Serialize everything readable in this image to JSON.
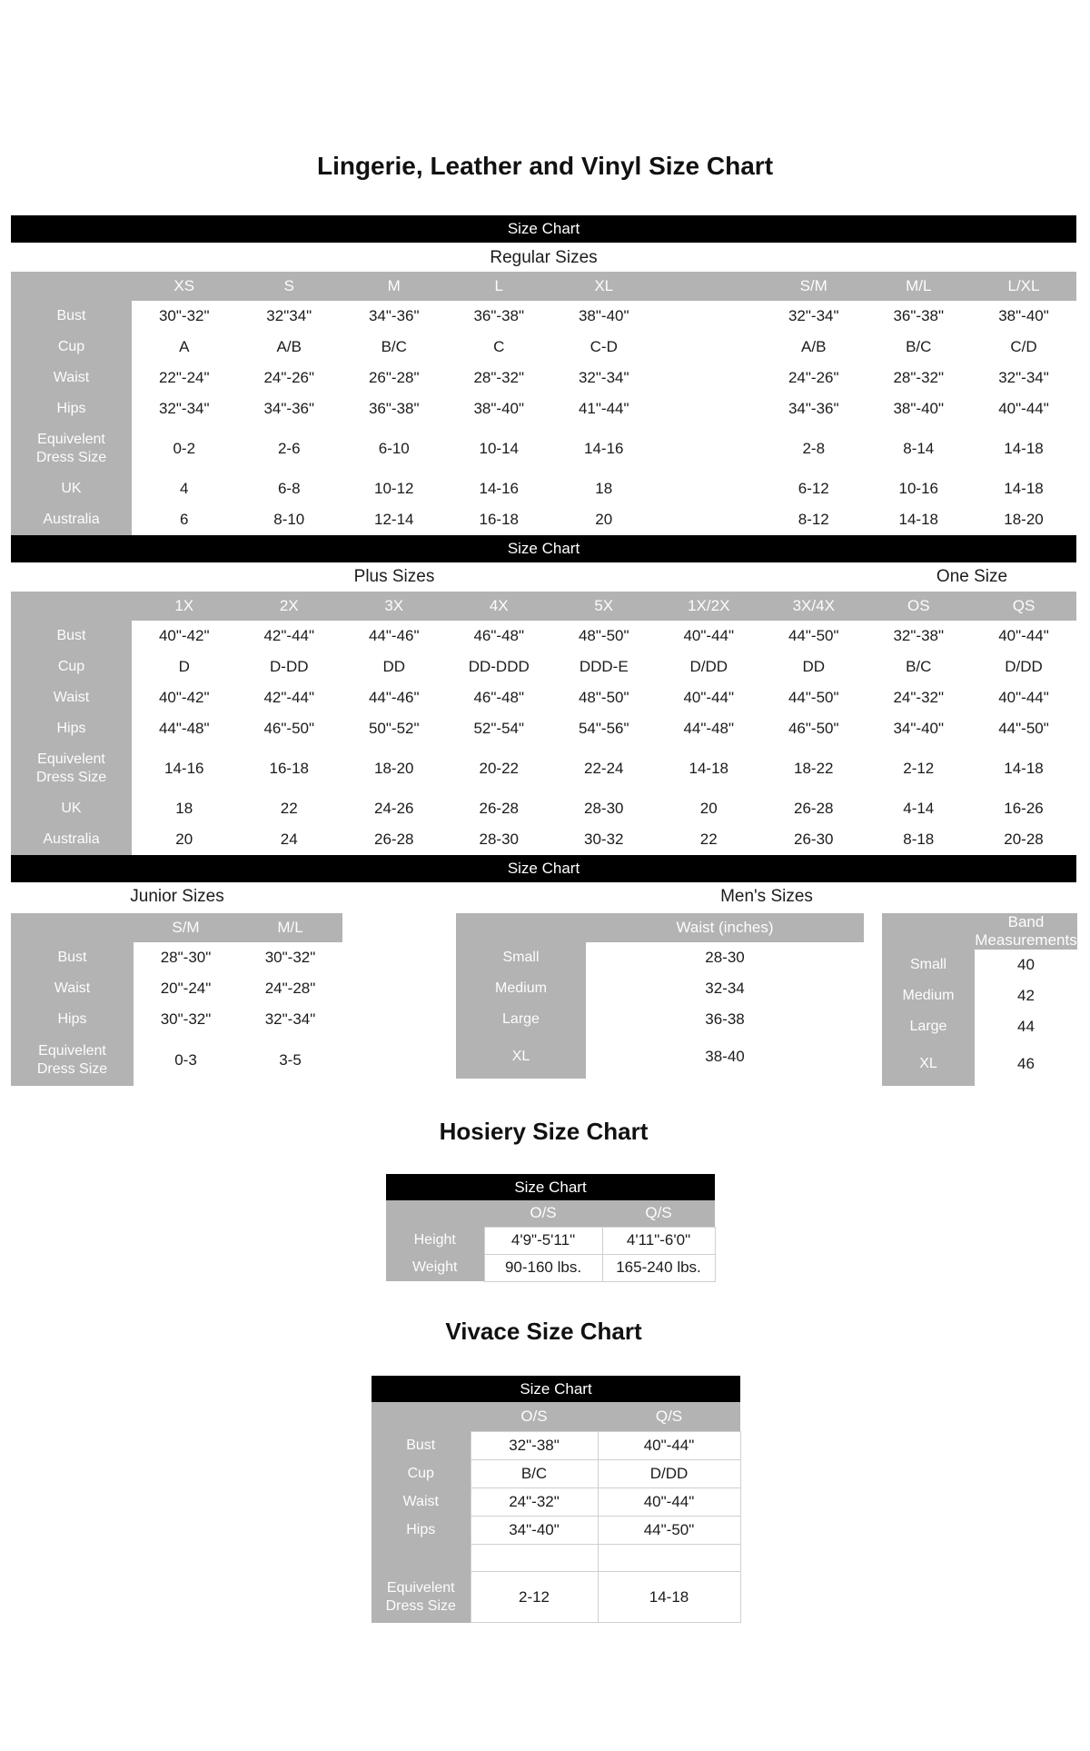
{
  "page": {
    "title": "Lingerie, Leather and Vinyl Size Chart",
    "bar_label": "Size Chart"
  },
  "colors": {
    "bar_bg": "#000000",
    "bar_text": "#ffffff",
    "header_gray": "#b3b3b3",
    "header_text": "#ffffff",
    "value_text": "#1b1b1b",
    "page_bg": "#ffffff",
    "divider": "#d0d0d0"
  },
  "regular": {
    "section_label": "Regular Sizes",
    "table": [
      [
        "",
        "XS",
        "S",
        "M",
        "L",
        "XL",
        "",
        "S/M",
        "M/L",
        "L/XL"
      ],
      [
        "Bust",
        "30\"-32\"",
        "32\"34\"",
        "34\"-36\"",
        "36\"-38\"",
        "38\"-40\"",
        "",
        "32\"-34\"",
        "36\"-38\"",
        "38\"-40\""
      ],
      [
        "Cup",
        "A",
        "A/B",
        "B/C",
        "C",
        "C-D",
        "",
        "A/B",
        "B/C",
        "C/D"
      ],
      [
        "Waist",
        "22\"-24\"",
        "24\"-26\"",
        "26\"-28\"",
        "28\"-32\"",
        "32\"-34\"",
        "",
        "24\"-26\"",
        "28\"-32\"",
        "32\"-34\""
      ],
      [
        "Hips",
        "32\"-34\"",
        "34\"-36\"",
        "36\"-38\"",
        "38\"-40\"",
        "41\"-44\"",
        "",
        "34\"-36\"",
        "38\"-40\"",
        "40\"-44\""
      ],
      [
        "Equivelent\nDress Size",
        "0-2",
        "2-6",
        "6-10",
        "10-14",
        "14-16",
        "",
        "2-8",
        "8-14",
        "14-18"
      ],
      [
        "UK",
        "4",
        "6-8",
        "10-12",
        "14-16",
        "18",
        "",
        "6-12",
        "10-16",
        "14-18"
      ],
      [
        "Australia",
        "6",
        "8-10",
        "12-14",
        "16-18",
        "20",
        "",
        "8-12",
        "14-18",
        "18-20"
      ]
    ]
  },
  "plus": {
    "section_label": "Plus Sizes",
    "one_size_label": "One Size",
    "table": [
      [
        "",
        "1X",
        "2X",
        "3X",
        "4X",
        "5X",
        "1X/2X",
        "3X/4X",
        "OS",
        "QS"
      ],
      [
        "Bust",
        "40\"-42\"",
        "42\"-44\"",
        "44\"-46\"",
        "46\"-48\"",
        "48\"-50\"",
        "40\"-44\"",
        "44\"-50\"",
        "32\"-38\"",
        "40\"-44\""
      ],
      [
        "Cup",
        "D",
        "D-DD",
        "DD",
        "DD-DDD",
        "DDD-E",
        "D/DD",
        "DD",
        "B/C",
        "D/DD"
      ],
      [
        "Waist",
        "40\"-42\"",
        "42\"-44\"",
        "44\"-46\"",
        "46\"-48\"",
        "48\"-50\"",
        "40\"-44\"",
        "44\"-50\"",
        "24\"-32\"",
        "40\"-44\""
      ],
      [
        "Hips",
        "44\"-48\"",
        "46\"-50\"",
        "50\"-52\"",
        "52\"-54\"",
        "54\"-56\"",
        "44\"-48\"",
        "46\"-50\"",
        "34\"-40\"",
        "44\"-50\""
      ],
      [
        "Equivelent\nDress Size",
        "14-16",
        "16-18",
        "18-20",
        "20-22",
        "22-24",
        "14-18",
        "18-22",
        "2-12",
        "14-18"
      ],
      [
        "UK",
        "18",
        "22",
        "24-26",
        "26-28",
        "28-30",
        "20",
        "26-28",
        "4-14",
        "16-26"
      ],
      [
        "Australia",
        "20",
        "24",
        "26-28",
        "28-30",
        "30-32",
        "22",
        "26-30",
        "8-18",
        "20-28"
      ]
    ]
  },
  "junior": {
    "section_label": "Junior Sizes",
    "table": [
      [
        "",
        "S/M",
        "M/L"
      ],
      [
        "Bust",
        "28\"-30\"",
        "30\"-32\""
      ],
      [
        "Waist",
        "20\"-24\"",
        "24\"-28\""
      ],
      [
        "Hips",
        "30\"-32\"",
        "32\"-34\""
      ],
      [
        "Equivelent\nDress Size",
        "0-3",
        "3-5"
      ]
    ]
  },
  "mens": {
    "section_label": "Men's Sizes",
    "waist_table": [
      [
        "",
        "Waist (inches)"
      ],
      [
        "Small",
        "28-30"
      ],
      [
        "Medium",
        "32-34"
      ],
      [
        "Large",
        "36-38"
      ],
      [
        "XL",
        "38-40"
      ]
    ],
    "band_table": [
      [
        "",
        "Band Measurements"
      ],
      [
        "Small",
        "40"
      ],
      [
        "Medium",
        "42"
      ],
      [
        "Large",
        "44"
      ],
      [
        "XL",
        "46"
      ]
    ]
  },
  "hosiery": {
    "title": "Hosiery Size Chart",
    "table": [
      [
        "",
        "O/S",
        "Q/S"
      ],
      [
        "Height",
        "4'9\"-5'11\"",
        "4'11\"-6'0\""
      ],
      [
        "Weight",
        "90-160 lbs.",
        "165-240 lbs."
      ]
    ]
  },
  "vivace": {
    "title": "Vivace Size Chart",
    "table": [
      [
        "",
        "O/S",
        "Q/S"
      ],
      [
        "Bust",
        "32\"-38\"",
        "40\"-44\""
      ],
      [
        "Cup",
        "B/C",
        "D/DD"
      ],
      [
        "Waist",
        "24\"-32\"",
        "40\"-44\""
      ],
      [
        "Hips",
        "34\"-40\"",
        "44\"-50\""
      ],
      [
        "",
        "",
        ""
      ],
      [
        "Equivelent\nDress Size",
        "2-12",
        "14-18"
      ]
    ]
  }
}
